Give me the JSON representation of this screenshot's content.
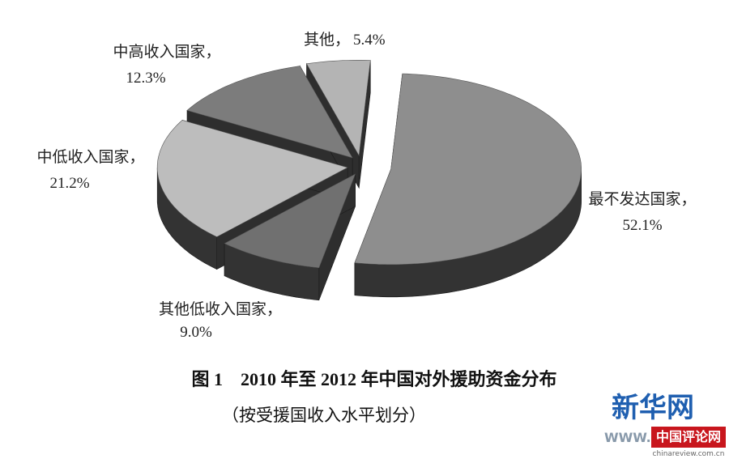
{
  "chart_data": {
    "type": "pie",
    "title": "图 1　2010 年至 2012 年中国对外援助资金分布",
    "subtitle": "（按受援国收入水平划分）",
    "categories": [
      "最不发达国家，",
      "其他低收入国家，",
      "中低收入国家，",
      "中高收入国家，",
      "其他，"
    ],
    "values": [
      52.1,
      9.0,
      21.2,
      12.3,
      5.4
    ],
    "value_labels": [
      "52.1%",
      "9.0%",
      "21.2%",
      "12.3%",
      "5.4%"
    ],
    "colors": [
      "#8e8e8e",
      "#707070",
      "#bdbdbd",
      "#7c7c7c",
      "#b4b4b4"
    ]
  },
  "watermark": {
    "brand": "新华网",
    "url": "WWW.N",
    "partner": "中国评论网",
    "partner_url": "chinareview.com.cn"
  }
}
